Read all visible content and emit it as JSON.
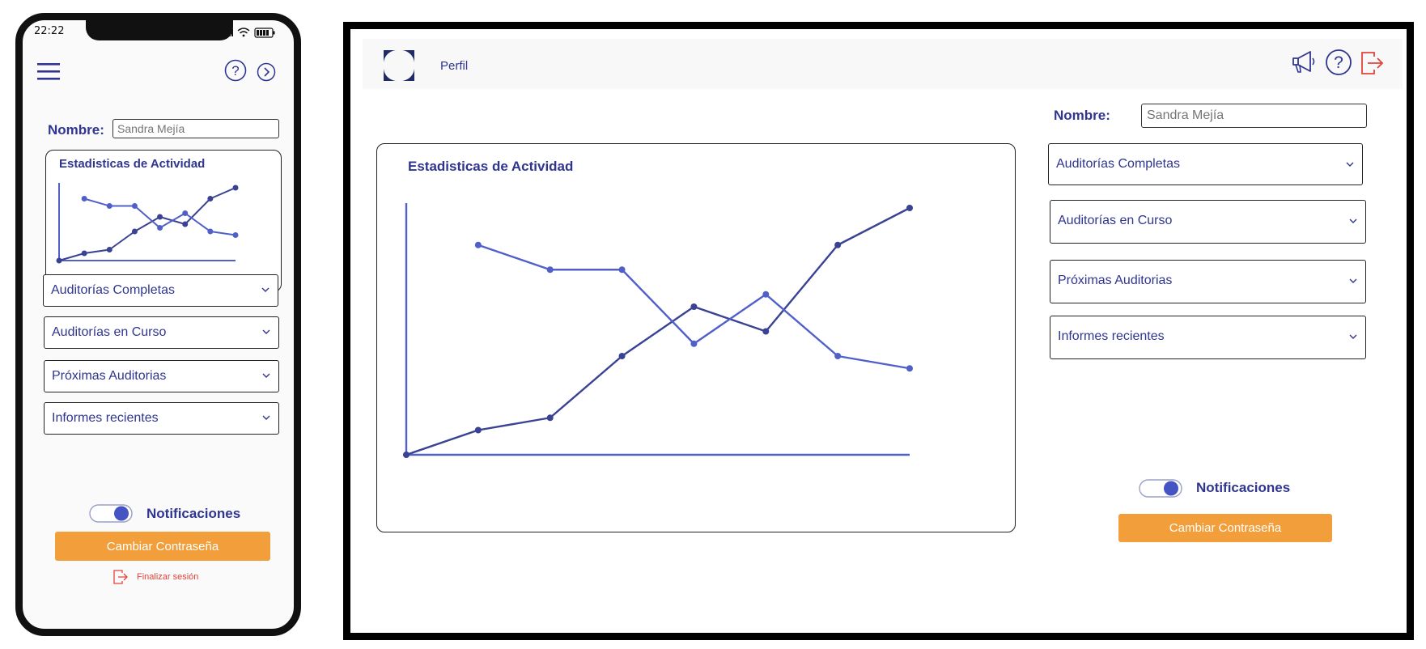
{
  "colors": {
    "primary": "#2f3590",
    "line_dark": "#3a4294",
    "line_light": "#5060c8",
    "accent_orange": "#f19e3b",
    "danger": "#e2443a",
    "toggle_on": "#4554c4"
  },
  "icons": {
    "menu": "hamburger-menu-icon",
    "help": "question-circle-icon",
    "next": "chevron-right-circle-icon",
    "announce": "megaphone-icon",
    "logout": "exit-door-icon",
    "dropdown": "chevron-down-icon",
    "logo": "logo-icon"
  },
  "mobile": {
    "status_time": "22:22",
    "name_label": "Nombre:",
    "name_placeholder": "Sandra Mejía",
    "chart_title": "Estadisticas de Actividad",
    "dropdowns": [
      {
        "label": "Auditorías Completas"
      },
      {
        "label": "Auditorías en Curso"
      },
      {
        "label": "Próximas Auditorias"
      },
      {
        "label": "Informes recientes"
      }
    ],
    "notifications_label": "Notificaciones",
    "notifications_on": true,
    "change_password_label": "Cambiar Contraseña",
    "logout_label": "Finalizar sesión"
  },
  "desktop": {
    "nav_label": "Perfil",
    "name_label": "Nombre:",
    "name_placeholder": "Sandra Mejía",
    "chart_title": "Estadisticas de Actividad",
    "dropdowns": [
      {
        "label": "Auditorías Completas"
      },
      {
        "label": "Auditorías en Curso"
      },
      {
        "label": "Próximas Auditorias"
      },
      {
        "label": "Informes recientes"
      }
    ],
    "notifications_label": "Notificaciones",
    "notifications_on": true,
    "change_password_label": "Cambiar Contraseña"
  },
  "chart_data": {
    "type": "line",
    "title": "Estadisticas de Actividad",
    "x": [
      0,
      1,
      2,
      3,
      4,
      5,
      6,
      7
    ],
    "xlim": [
      0,
      7
    ],
    "ylim": [
      0,
      100
    ],
    "grid": false,
    "legend": "none",
    "series": [
      {
        "color": "#3a4294",
        "x": [
          0,
          1,
          2,
          3,
          4,
          5,
          6,
          7
        ],
        "values": [
          0,
          10,
          15,
          40,
          60,
          50,
          85,
          100
        ]
      },
      {
        "color": "#5060c8",
        "x": [
          1,
          2,
          3,
          4,
          5,
          6,
          7
        ],
        "values": [
          85,
          75,
          75,
          45,
          65,
          40,
          35
        ]
      }
    ]
  }
}
